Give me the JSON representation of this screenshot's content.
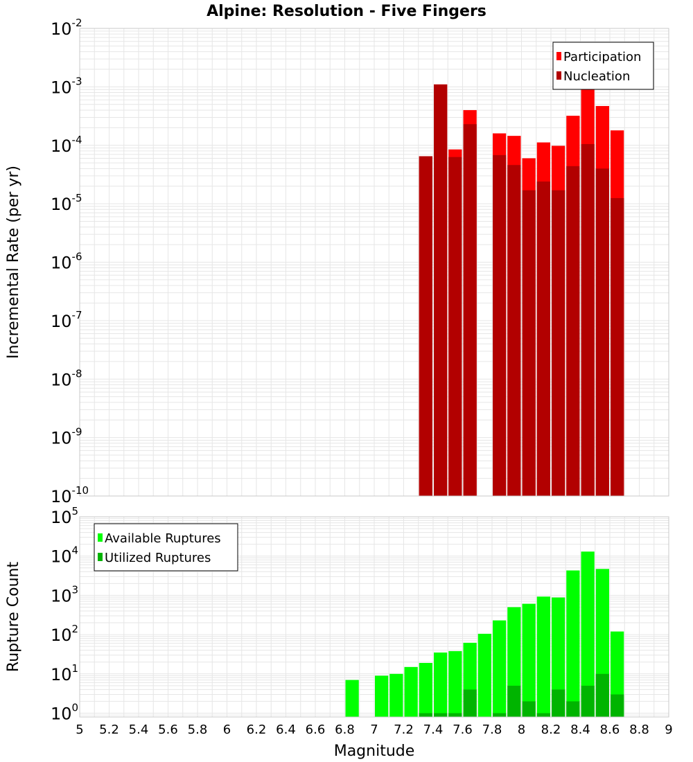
{
  "chart_data": {
    "type": "bar",
    "title": "Alpine: Resolution - Five Fingers",
    "xlabel": "Magnitude",
    "x_range": [
      5,
      9
    ],
    "x_ticks": [
      "5",
      "5.2",
      "5.4",
      "5.6",
      "5.8",
      "6",
      "6.2",
      "6.4",
      "6.6",
      "6.8",
      "7",
      "7.2",
      "7.4",
      "7.6",
      "7.8",
      "8",
      "8.2",
      "8.4",
      "8.6",
      "8.8",
      "9"
    ],
    "bin_width": 0.1,
    "grid": true,
    "colors": {
      "participation": "#ff0000",
      "nucleation": "#b20000",
      "available": "#00ff00",
      "utilized": "#00b400",
      "grid": "#e6e6e6",
      "frame": "#c8c8c8"
    },
    "panels": [
      {
        "ylabel": "Incremental Rate (per yr)",
        "y_scale": "log",
        "y_range": [
          1e-10,
          0.01
        ],
        "y_ticks": [
          {
            "base": "10",
            "exp": "-2"
          },
          {
            "base": "10",
            "exp": "-3"
          },
          {
            "base": "10",
            "exp": "-4"
          },
          {
            "base": "10",
            "exp": "-5"
          },
          {
            "base": "10",
            "exp": "-6"
          },
          {
            "base": "10",
            "exp": "-7"
          },
          {
            "base": "10",
            "exp": "-8"
          },
          {
            "base": "10",
            "exp": "-9"
          },
          {
            "base": "10",
            "exp": "-10"
          }
        ],
        "legend_position": "top-right",
        "series": [
          {
            "name": "Participation",
            "color": "#ff0000",
            "x": [
              7.35,
              7.45,
              7.55,
              7.65,
              7.85,
              7.95,
              8.05,
              8.15,
              8.25,
              8.35,
              8.45,
              8.55,
              8.65
            ],
            "values": [
              6.5e-05,
              0.0011,
              8.5e-05,
              0.0004,
              0.00016,
              0.000145,
              6e-05,
              0.000112,
              9.8e-05,
              0.00032,
              0.00095,
              0.00047,
              0.00018
            ]
          },
          {
            "name": "Nucleation",
            "color": "#b20000",
            "x": [
              7.35,
              7.45,
              7.55,
              7.65,
              7.85,
              7.95,
              8.05,
              8.15,
              8.25,
              8.35,
              8.45,
              8.55,
              8.65
            ],
            "values": [
              6.5e-05,
              0.0011,
              6.3e-05,
              0.00023,
              6.8e-05,
              4.6e-05,
              1.7e-05,
              2.4e-05,
              1.7e-05,
              4.4e-05,
              0.000105,
              4e-05,
              1.25e-05
            ]
          }
        ]
      },
      {
        "ylabel": "Rupture Count",
        "y_scale": "log",
        "y_range": [
          0.8,
          100000.0
        ],
        "y_ticks": [
          {
            "base": "10",
            "exp": "5"
          },
          {
            "base": "10",
            "exp": "4"
          },
          {
            "base": "10",
            "exp": "3"
          },
          {
            "base": "10",
            "exp": "2"
          },
          {
            "base": "10",
            "exp": "1"
          },
          {
            "base": "10",
            "exp": "0"
          }
        ],
        "legend_position": "top-left",
        "series": [
          {
            "name": "Available Ruptures",
            "color": "#00ff00",
            "x": [
              6.85,
              7.05,
              7.15,
              7.25,
              7.35,
              7.45,
              7.55,
              7.65,
              7.75,
              7.85,
              7.95,
              8.05,
              8.15,
              8.25,
              8.35,
              8.45,
              8.55,
              8.65
            ],
            "values": [
              7,
              9,
              10,
              15,
              19,
              35,
              38,
              62,
              105,
              230,
              500,
              610,
              930,
              880,
              4300,
              13000,
              4700,
              120
            ]
          },
          {
            "name": "Utilized Ruptures",
            "color": "#00b400",
            "x": [
              7.35,
              7.45,
              7.55,
              7.65,
              7.85,
              7.95,
              8.05,
              8.15,
              8.25,
              8.35,
              8.45,
              8.55,
              8.65
            ],
            "values": [
              1,
              1,
              1,
              4,
              1,
              5,
              2,
              1,
              4,
              2,
              5,
              10,
              3
            ]
          }
        ]
      }
    ]
  }
}
